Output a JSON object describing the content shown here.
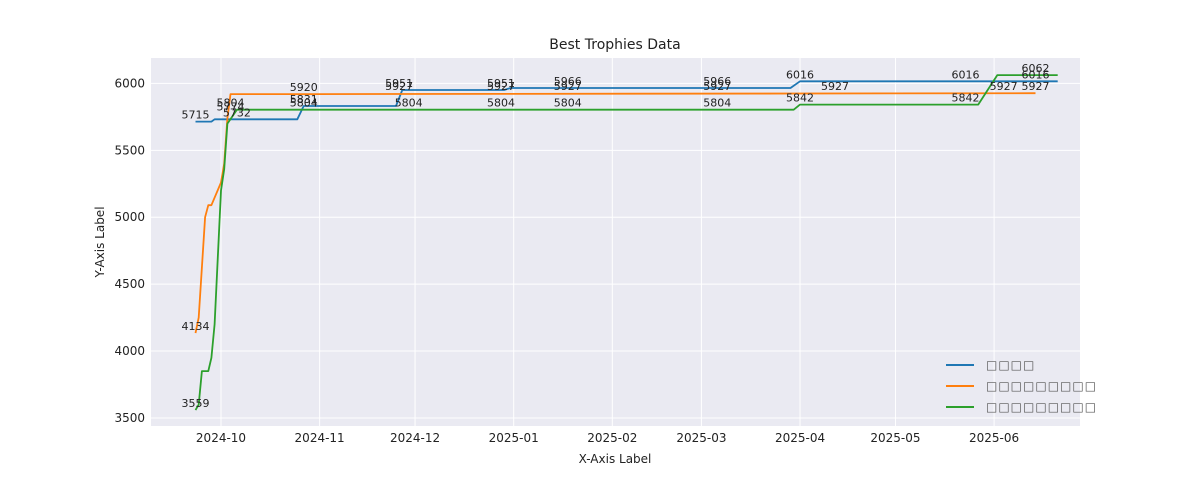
{
  "chart_data": {
    "type": "line",
    "title": "Best Trophies Data",
    "xlabel": "X-Axis Label",
    "ylabel": "Y-Axis Label",
    "xlim": [
      "2024-09-09",
      "2025-06-28"
    ],
    "ylim": [
      3440,
      6190
    ],
    "x_ticks": [
      "2024-10-01",
      "2024-11-01",
      "2024-12-01",
      "2025-01-01",
      "2025-02-01",
      "2025-03-01",
      "2025-04-01",
      "2025-05-01",
      "2025-06-01"
    ],
    "x_tick_labels": [
      "2024-10",
      "2024-11",
      "2024-12",
      "2025-01",
      "2025-02",
      "2025-03",
      "2025-04",
      "2025-05",
      "2025-06"
    ],
    "y_ticks": [
      3500,
      4000,
      4500,
      5000,
      5500,
      6000
    ],
    "y_tick_labels": [
      "3500",
      "4000",
      "4500",
      "5000",
      "5500",
      "6000"
    ],
    "grid": true,
    "legend_position": "lower right",
    "series": [
      {
        "name": "□□□□",
        "color": "#1f77b4",
        "points": [
          [
            "2024-09-23",
            5715
          ],
          [
            "2024-09-28",
            5715
          ],
          [
            "2024-09-29",
            5732
          ],
          [
            "2024-10-25",
            5732
          ],
          [
            "2024-10-27",
            5831
          ],
          [
            "2024-11-25",
            5831
          ],
          [
            "2024-11-27",
            5951
          ],
          [
            "2024-12-29",
            5951
          ],
          [
            "2024-12-31",
            5966
          ],
          [
            "2025-03-29",
            5966
          ],
          [
            "2025-04-01",
            6016
          ],
          [
            "2025-06-21",
            6016
          ]
        ]
      },
      {
        "name": "□□□□□□□□□",
        "color": "#ff7f0e",
        "points": [
          [
            "2024-09-23",
            4134
          ],
          [
            "2024-09-24",
            4250
          ],
          [
            "2024-09-26",
            5000
          ],
          [
            "2024-09-27",
            5090
          ],
          [
            "2024-09-28",
            5090
          ],
          [
            "2024-10-01",
            5260
          ],
          [
            "2024-10-02",
            5400
          ],
          [
            "2024-10-03",
            5740
          ],
          [
            "2024-10-04",
            5920
          ],
          [
            "2024-10-31",
            5920
          ],
          [
            "2025-06-14",
            5927
          ]
        ]
      },
      {
        "name": "□□□□□□□□□",
        "color": "#2ca02c",
        "points": [
          [
            "2024-09-23",
            3559
          ],
          [
            "2024-09-24",
            3600
          ],
          [
            "2024-09-25",
            3850
          ],
          [
            "2024-09-27",
            3850
          ],
          [
            "2024-09-28",
            3950
          ],
          [
            "2024-09-29",
            4200
          ],
          [
            "2024-09-30",
            4700
          ],
          [
            "2024-10-01",
            5200
          ],
          [
            "2024-10-02",
            5360
          ],
          [
            "2024-10-03",
            5700
          ],
          [
            "2024-10-06",
            5804
          ],
          [
            "2025-03-30",
            5804
          ],
          [
            "2025-04-01",
            5842
          ],
          [
            "2025-05-27",
            5842
          ],
          [
            "2025-06-02",
            6062
          ],
          [
            "2025-06-21",
            6062
          ]
        ]
      }
    ],
    "annotations": [
      {
        "x": "2024-09-23",
        "y": 5715,
        "text": "5715"
      },
      {
        "x": "2024-09-23",
        "y": 4134,
        "text": "4134"
      },
      {
        "x": "2024-09-23",
        "y": 3559,
        "text": "3559"
      },
      {
        "x": "2024-10-04",
        "y": 5804,
        "text": "5804"
      },
      {
        "x": "2024-10-04",
        "y": 5774,
        "text": "5774"
      },
      {
        "x": "2024-10-06",
        "y": 5732,
        "text": "5732"
      },
      {
        "x": "2024-10-27",
        "y": 5920,
        "text": "5920"
      },
      {
        "x": "2024-10-27",
        "y": 5831,
        "text": "5831"
      },
      {
        "x": "2024-10-27",
        "y": 5804,
        "text": "5804"
      },
      {
        "x": "2024-11-26",
        "y": 5951,
        "text": "5951"
      },
      {
        "x": "2024-11-26",
        "y": 5927,
        "text": "5927"
      },
      {
        "x": "2024-11-29",
        "y": 5804,
        "text": "5804"
      },
      {
        "x": "2024-12-28",
        "y": 5951,
        "text": "5951"
      },
      {
        "x": "2024-12-28",
        "y": 5927,
        "text": "5927"
      },
      {
        "x": "2024-12-28",
        "y": 5804,
        "text": "5804"
      },
      {
        "x": "2025-01-18",
        "y": 5966,
        "text": "5966"
      },
      {
        "x": "2025-01-18",
        "y": 5927,
        "text": "5927"
      },
      {
        "x": "2025-01-18",
        "y": 5804,
        "text": "5804"
      },
      {
        "x": "2025-03-06",
        "y": 5966,
        "text": "5966"
      },
      {
        "x": "2025-03-06",
        "y": 5927,
        "text": "5927"
      },
      {
        "x": "2025-03-06",
        "y": 5804,
        "text": "5804"
      },
      {
        "x": "2025-04-01",
        "y": 6016,
        "text": "6016"
      },
      {
        "x": "2025-04-01",
        "y": 5842,
        "text": "5842"
      },
      {
        "x": "2025-04-12",
        "y": 5927,
        "text": "5927"
      },
      {
        "x": "2025-05-23",
        "y": 6016,
        "text": "6016"
      },
      {
        "x": "2025-05-23",
        "y": 5842,
        "text": "5842"
      },
      {
        "x": "2025-06-04",
        "y": 5927,
        "text": "5927"
      },
      {
        "x": "2025-06-14",
        "y": 6062,
        "text": "6062"
      },
      {
        "x": "2025-06-14",
        "y": 6016,
        "text": "6016"
      },
      {
        "x": "2025-06-14",
        "y": 5927,
        "text": "5927"
      }
    ]
  }
}
